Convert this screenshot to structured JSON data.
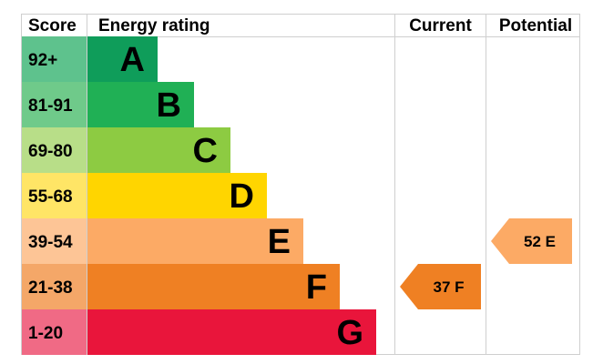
{
  "header": {
    "score": "Score",
    "rating": "Energy rating",
    "current": "Current",
    "potential": "Potential"
  },
  "chart_data": {
    "type": "bar",
    "bands": [
      {
        "letter": "A",
        "range": "92+",
        "color": "#0f9d5a",
        "score_color": "#5ec28d"
      },
      {
        "letter": "B",
        "range": "81-91",
        "color": "#20b055",
        "score_color": "#6fca8a"
      },
      {
        "letter": "C",
        "range": "69-80",
        "color": "#8dcb42",
        "score_color": "#b8de88"
      },
      {
        "letter": "D",
        "range": "55-68",
        "color": "#ffd500",
        "score_color": "#ffe566"
      },
      {
        "letter": "E",
        "range": "39-54",
        "color": "#fcaa65",
        "score_color": "#fdc596"
      },
      {
        "letter": "F",
        "range": "21-38",
        "color": "#ef8023",
        "score_color": "#f4a768"
      },
      {
        "letter": "G",
        "range": "1-20",
        "color": "#e9153b",
        "score_color": "#f06a85"
      }
    ],
    "current": {
      "value": 37,
      "band": "F",
      "label": "37 F",
      "color": "#ef8023"
    },
    "potential": {
      "value": 52,
      "band": "E",
      "label": "52 E",
      "color": "#fcaa65"
    }
  }
}
